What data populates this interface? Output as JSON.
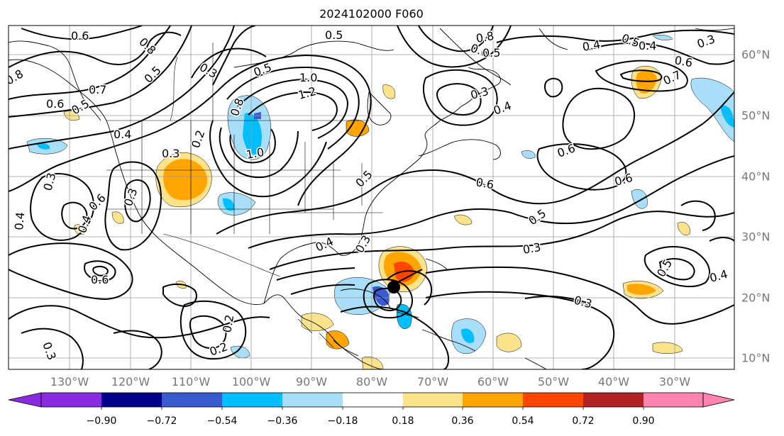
{
  "title": "2024102000 F060",
  "lon_labels": [
    "130°W",
    "120°W",
    "110°W",
    "100°W",
    "90°W",
    "80°W",
    "70°W",
    "60°W",
    "50°W",
    "40°W",
    "30°W"
  ],
  "lat_labels": [
    "60°N",
    "50°N",
    "40°N",
    "30°N",
    "20°N",
    "10°N"
  ],
  "contour_labels": [
    "0.6",
    "0.8",
    "0.5",
    "0.7",
    "0.6",
    "0.5",
    "0.3",
    "0.4",
    "0.3",
    "0.2",
    "0.5",
    "1.0",
    "1.2",
    "1.0",
    "0.8",
    "0.3",
    "0.4",
    "0.6",
    "0.3",
    "0.4",
    "0.6",
    "0.4",
    "0.5",
    "0.3",
    "0.3",
    "0.3",
    "0.5",
    "0.6",
    "0.3",
    "0.2",
    "0.2",
    "0.5",
    "0.8",
    "0.6",
    "0.4",
    "0.5",
    "0.6",
    "0.7",
    "0.3",
    "0.4",
    "0.6",
    "0.6",
    "0.5",
    "0.4",
    "0.5",
    "0.4",
    "0.3",
    "0.8"
  ],
  "colorbar": {
    "ticks": [
      "−0.90",
      "−0.72",
      "−0.54",
      "−0.36",
      "−0.18",
      "0.18",
      "0.36",
      "0.54",
      "0.72",
      "0.90"
    ],
    "colors": [
      "#8a2be2",
      "#00008b",
      "#3a5ad0",
      "#00bfff",
      "#a8def8",
      "#ffffff",
      "#fbe38c",
      "#ffa500",
      "#ff4500",
      "#b22222",
      "#ff85b0"
    ]
  }
}
